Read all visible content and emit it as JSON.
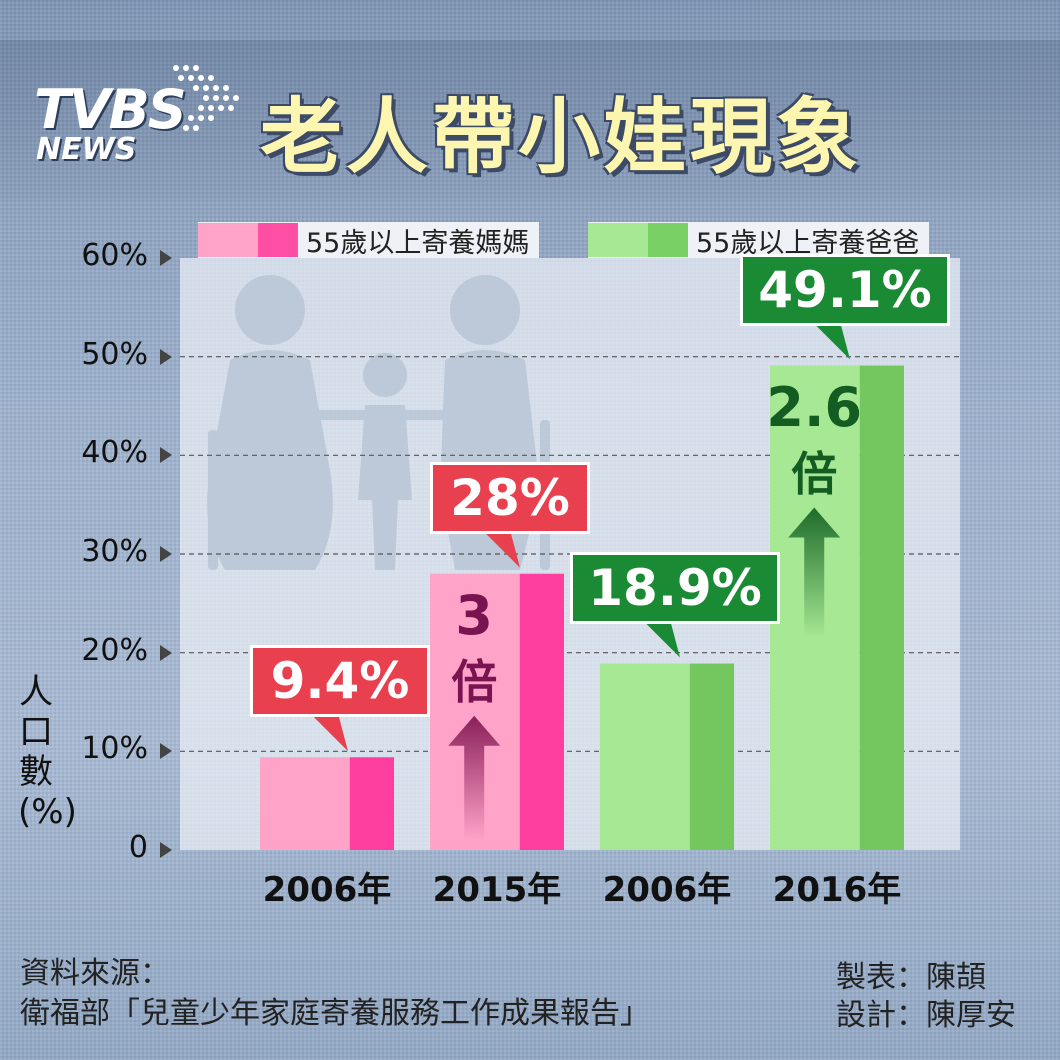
{
  "header": {
    "logo_top": "TVBS",
    "logo_bottom": "NEWS",
    "title": "老人帶小娃現象"
  },
  "legend": [
    {
      "label": "55歲以上寄養媽媽",
      "color": "#ff4fa5"
    },
    {
      "label": "55歲以上寄養爸爸",
      "color": "#79d165"
    }
  ],
  "chart_data": {
    "type": "bar",
    "title": "老人帶小娃現象",
    "ylabel": "人口數(%)",
    "ylim": [
      0,
      60
    ],
    "yticks": [
      "0",
      "10%",
      "20%",
      "30%",
      "40%",
      "50%",
      "60%"
    ],
    "categories": [
      "2006年",
      "2015年",
      "2006年",
      "2016年"
    ],
    "series": [
      {
        "name": "55歲以上寄養媽媽",
        "values": [
          9.4,
          28,
          null,
          null
        ]
      },
      {
        "name": "55歲以上寄養爸爸",
        "values": [
          null,
          null,
          18.9,
          49.1
        ]
      }
    ],
    "data_labels": [
      "9.4%",
      "28%",
      "18.9%",
      "49.1%"
    ],
    "annotations": [
      {
        "number": "3",
        "unit": "倍"
      },
      {
        "number": "2.6",
        "unit": "倍"
      }
    ],
    "grid": true
  },
  "footer": {
    "source_label": "資料來源：",
    "source_text": "衛福部「兒童少年家庭寄養服務工作成果報告」",
    "producer": "製表：陳頡",
    "designer": "設計：陳厚安"
  }
}
